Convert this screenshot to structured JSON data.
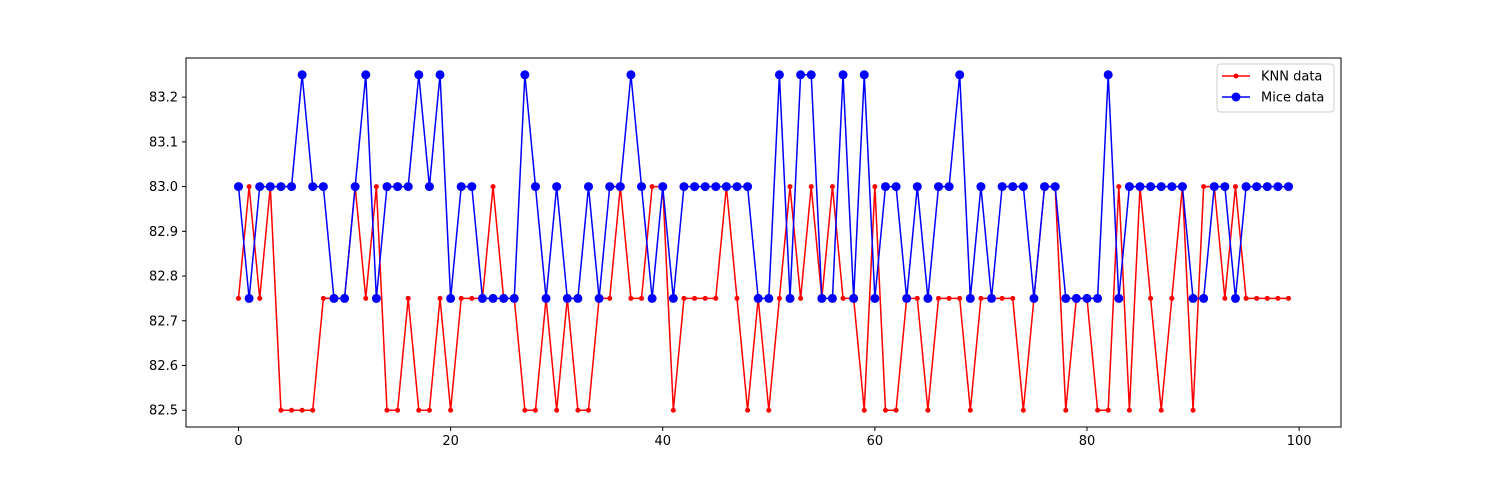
{
  "chart_data": {
    "type": "line",
    "title": "",
    "xlabel": "",
    "ylabel": "",
    "xlim": [
      -4.95,
      103.95
    ],
    "ylim": [
      82.4625,
      83.2875
    ],
    "x_ticks": [
      0,
      20,
      40,
      60,
      80,
      100
    ],
    "y_ticks": [
      82.5,
      82.6,
      82.7,
      82.8,
      82.9,
      83.0,
      83.1,
      83.2
    ],
    "x_tick_labels": [
      "0",
      "20",
      "40",
      "60",
      "80",
      "100"
    ],
    "y_tick_labels": [
      "82.5",
      "82.6",
      "82.7",
      "82.8",
      "82.9",
      "83.0",
      "83.1",
      "83.2"
    ],
    "legend_position": "top-right",
    "x": [
      0,
      1,
      2,
      3,
      4,
      5,
      6,
      7,
      8,
      9,
      10,
      11,
      12,
      13,
      14,
      15,
      16,
      17,
      18,
      19,
      20,
      21,
      22,
      23,
      24,
      25,
      26,
      27,
      28,
      29,
      30,
      31,
      32,
      33,
      34,
      35,
      36,
      37,
      38,
      39,
      40,
      41,
      42,
      43,
      44,
      45,
      46,
      47,
      48,
      49,
      50,
      51,
      52,
      53,
      54,
      55,
      56,
      57,
      58,
      59,
      60,
      61,
      62,
      63,
      64,
      65,
      66,
      67,
      68,
      69,
      70,
      71,
      72,
      73,
      74,
      75,
      76,
      77,
      78,
      79,
      80,
      81,
      82,
      83,
      84,
      85,
      86,
      87,
      88,
      89,
      90,
      91,
      92,
      93,
      94,
      95,
      96,
      97,
      98,
      99
    ],
    "series": [
      {
        "name": "KNN data",
        "color": "#ff0000",
        "marker": "small-dot",
        "values": [
          82.75,
          83.0,
          82.75,
          83.0,
          82.5,
          82.5,
          82.5,
          82.5,
          82.75,
          82.75,
          82.75,
          83.0,
          82.75,
          83.0,
          82.5,
          82.5,
          82.75,
          82.5,
          82.5,
          82.75,
          82.5,
          82.75,
          82.75,
          82.75,
          83.0,
          82.75,
          82.75,
          82.5,
          82.5,
          82.75,
          82.5,
          82.75,
          82.5,
          82.5,
          82.75,
          82.75,
          83.0,
          82.75,
          82.75,
          83.0,
          83.0,
          82.5,
          82.75,
          82.75,
          82.75,
          82.75,
          83.0,
          82.75,
          82.5,
          82.75,
          82.5,
          82.75,
          83.0,
          82.75,
          83.0,
          82.75,
          83.0,
          82.75,
          82.75,
          82.5,
          83.0,
          82.5,
          82.5,
          82.75,
          82.75,
          82.5,
          82.75,
          82.75,
          82.75,
          82.5,
          82.75,
          82.75,
          82.75,
          82.75,
          82.5,
          82.75,
          83.0,
          83.0,
          82.5,
          82.75,
          82.75,
          82.5,
          82.5,
          83.0,
          82.5,
          83.0,
          82.75,
          82.5,
          82.75,
          83.0,
          82.5,
          83.0,
          83.0,
          82.75,
          83.0,
          82.75,
          82.75,
          82.75,
          82.75,
          82.75
        ]
      },
      {
        "name": "Mice data",
        "color": "#0000ff",
        "marker": "large-dot",
        "values": [
          83.0,
          82.75,
          83.0,
          83.0,
          83.0,
          83.0,
          83.25,
          83.0,
          83.0,
          82.75,
          82.75,
          83.0,
          83.25,
          82.75,
          83.0,
          83.0,
          83.0,
          83.25,
          83.0,
          83.25,
          82.75,
          83.0,
          83.0,
          82.75,
          82.75,
          82.75,
          82.75,
          83.25,
          83.0,
          82.75,
          83.0,
          82.75,
          82.75,
          83.0,
          82.75,
          83.0,
          83.0,
          83.25,
          83.0,
          82.75,
          83.0,
          82.75,
          83.0,
          83.0,
          83.0,
          83.0,
          83.0,
          83.0,
          83.0,
          82.75,
          82.75,
          83.25,
          82.75,
          83.25,
          83.25,
          82.75,
          82.75,
          83.25,
          82.75,
          83.25,
          82.75,
          83.0,
          83.0,
          82.75,
          83.0,
          82.75,
          83.0,
          83.0,
          83.25,
          82.75,
          83.0,
          82.75,
          83.0,
          83.0,
          83.0,
          82.75,
          83.0,
          83.0,
          82.75,
          82.75,
          82.75,
          82.75,
          83.25,
          82.75,
          83.0,
          83.0,
          83.0,
          83.0,
          83.0,
          83.0,
          82.75,
          82.75,
          83.0,
          83.0,
          82.75,
          83.0,
          83.0,
          83.0,
          83.0,
          83.0
        ]
      }
    ]
  }
}
